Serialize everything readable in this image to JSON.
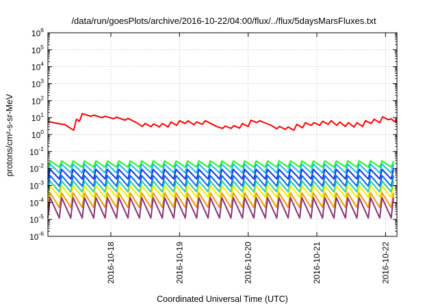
{
  "chart_data": {
    "type": "line",
    "title": "/data/run/goesPlots/archive/2016-10-22/04:00/flux/../flux/5daysMarsFluxes.txt",
    "xlabel": "Coordinated Universal Time (UTC)",
    "ylabel": "protons/cm²-s-sr-MeV",
    "yscale": "log",
    "ylim": [
      1e-06,
      1000000.0
    ],
    "xlim": [
      "2016-10-17 02:00",
      "2016-10-22 04:00"
    ],
    "grid": true,
    "legend": "none",
    "y_ticks": [
      {
        "base": "10",
        "exp": "-6",
        "value": 1e-06
      },
      {
        "base": "10",
        "exp": "-5",
        "value": 1e-05
      },
      {
        "base": "10",
        "exp": "-4",
        "value": 0.0001
      },
      {
        "base": "10",
        "exp": "-3",
        "value": 0.001
      },
      {
        "base": "10",
        "exp": "-2",
        "value": 0.01
      },
      {
        "base": "10",
        "exp": "-1",
        "value": 0.1
      },
      {
        "base": "10",
        "exp": "0",
        "value": 1
      },
      {
        "base": "10",
        "exp": "1",
        "value": 10
      },
      {
        "base": "10",
        "exp": "2",
        "value": 100
      },
      {
        "base": "10",
        "exp": "3",
        "value": 1000
      },
      {
        "base": "10",
        "exp": "4",
        "value": 10000
      },
      {
        "base": "10",
        "exp": "5",
        "value": 100000
      },
      {
        "base": "10",
        "exp": "6",
        "value": 1000000
      }
    ],
    "x_ticks": [
      {
        "label": "2016-10-18",
        "value": "2016-10-18 00:00"
      },
      {
        "label": "2016-10-19",
        "value": "2016-10-19 00:00"
      },
      {
        "label": "2016-10-20",
        "value": "2016-10-20 00:00"
      },
      {
        "label": "2016-10-21",
        "value": "2016-10-21 00:00"
      },
      {
        "label": "2016-10-22",
        "value": "2016-10-22 00:00"
      }
    ],
    "series": [
      {
        "color": "#ff0000",
        "points": [
          [
            "2016-10-17 02:00",
            6
          ],
          [
            "2016-10-17 04:00",
            5
          ],
          [
            "2016-10-17 08:00",
            3.8
          ],
          [
            "2016-10-17 11:00",
            1.8
          ],
          [
            "2016-10-17 12:00",
            8
          ],
          [
            "2016-10-17 13:00",
            6
          ],
          [
            "2016-10-17 14:00",
            17
          ],
          [
            "2016-10-17 17:00",
            12
          ],
          [
            "2016-10-17 18:00",
            14
          ],
          [
            "2016-10-17 21:00",
            10
          ],
          [
            "2016-10-17 22:00",
            12
          ],
          [
            "2016-10-18 01:00",
            8.5
          ],
          [
            "2016-10-18 02:00",
            10.5
          ],
          [
            "2016-10-18 05:00",
            7
          ],
          [
            "2016-10-18 06:00",
            9
          ],
          [
            "2016-10-18 09:00",
            5
          ],
          [
            "2016-10-18 11:00",
            3
          ],
          [
            "2016-10-18 12:00",
            4.5
          ],
          [
            "2016-10-18 14:00",
            2.9
          ],
          [
            "2016-10-18 15:00",
            4.2
          ],
          [
            "2016-10-18 17:00",
            2.8
          ],
          [
            "2016-10-18 18:00",
            4.5
          ],
          [
            "2016-10-18 20:00",
            2.8
          ],
          [
            "2016-10-18 21:00",
            5.5
          ],
          [
            "2016-10-18 23:00",
            3.5
          ],
          [
            "2016-10-19 00:00",
            6.5
          ],
          [
            "2016-10-19 02:00",
            4.5
          ],
          [
            "2016-10-19 03:00",
            6.5
          ],
          [
            "2016-10-19 05:00",
            3.8
          ],
          [
            "2016-10-19 06:00",
            5.5
          ],
          [
            "2016-10-19 08:00",
            4
          ],
          [
            "2016-10-19 09:00",
            6.5
          ],
          [
            "2016-10-19 13:00",
            3
          ],
          [
            "2016-10-19 15:00",
            2.3
          ],
          [
            "2016-10-19 16:00",
            3.2
          ],
          [
            "2016-10-19 18:00",
            2.3
          ],
          [
            "2016-10-19 19:00",
            3.3
          ],
          [
            "2016-10-19 21:00",
            2.4
          ],
          [
            "2016-10-19 22:00",
            4.5
          ],
          [
            "2016-10-20 00:00",
            3
          ],
          [
            "2016-10-20 01:00",
            7
          ],
          [
            "2016-10-20 03:00",
            5
          ],
          [
            "2016-10-20 04:00",
            6.5
          ],
          [
            "2016-10-20 08:00",
            3.5
          ],
          [
            "2016-10-20 10:00",
            2.2
          ],
          [
            "2016-10-20 11:00",
            3
          ],
          [
            "2016-10-20 13:00",
            2
          ],
          [
            "2016-10-20 14:00",
            2.8
          ],
          [
            "2016-10-20 16:00",
            1.8
          ],
          [
            "2016-10-20 17:00",
            4
          ],
          [
            "2016-10-20 19:00",
            2.5
          ],
          [
            "2016-10-20 20:00",
            5
          ],
          [
            "2016-10-20 22:00",
            3.5
          ],
          [
            "2016-10-20 23:00",
            5
          ],
          [
            "2016-10-21 01:00",
            3.5
          ],
          [
            "2016-10-21 02:00",
            6
          ],
          [
            "2016-10-21 04:00",
            4
          ],
          [
            "2016-10-21 05:00",
            6.5
          ],
          [
            "2016-10-21 07:00",
            3.5
          ],
          [
            "2016-10-21 08:00",
            5.5
          ],
          [
            "2016-10-21 10:00",
            3
          ],
          [
            "2016-10-21 11:00",
            5
          ],
          [
            "2016-10-21 13:00",
            2.8
          ],
          [
            "2016-10-21 14:00",
            5
          ],
          [
            "2016-10-21 16:00",
            3
          ],
          [
            "2016-10-21 17:00",
            6.5
          ],
          [
            "2016-10-21 19:00",
            4.5
          ],
          [
            "2016-10-21 20:00",
            8
          ],
          [
            "2016-10-21 22:00",
            5
          ],
          [
            "2016-10-21 23:00",
            11
          ],
          [
            "2016-10-22 01:00",
            7.5
          ],
          [
            "2016-10-22 02:00",
            8.5
          ],
          [
            "2016-10-22 03:00",
            6
          ],
          [
            "2016-10-22 03:30",
            6.5
          ],
          [
            "2016-10-22 04:00",
            5
          ]
        ]
      },
      {
        "color": "#22ee22",
        "sawtooth": {
          "peak": 0.028,
          "trough": 0.012,
          "period_hours": 4
        }
      },
      {
        "color": "#11bbee",
        "sawtooth": {
          "peak": 0.018,
          "trough": 0.0055,
          "period_hours": 4
        }
      },
      {
        "color": "#1133dd",
        "sawtooth": {
          "peak": 0.0088,
          "trough": 0.0024,
          "period_hours": 4
        }
      },
      {
        "color": "#0066ee",
        "sawtooth": {
          "peak": 0.0038,
          "trough": 0.0009,
          "period_hours": 4
        }
      },
      {
        "color": "#22ccaa",
        "sawtooth": {
          "peak": 0.0018,
          "trough": 0.00042,
          "period_hours": 4
        }
      },
      {
        "color": "#eeee00",
        "sawtooth": {
          "peak": 0.00095,
          "trough": 0.0002,
          "period_hours": 4
        }
      },
      {
        "color": "#ee9900",
        "sawtooth": {
          "peak": 0.00036,
          "trough": 5e-05,
          "period_hours": 4
        }
      },
      {
        "color": "#883377",
        "sawtooth": {
          "peak": 0.00019,
          "trough": 1.2e-05,
          "period_hours": 4
        }
      }
    ]
  }
}
